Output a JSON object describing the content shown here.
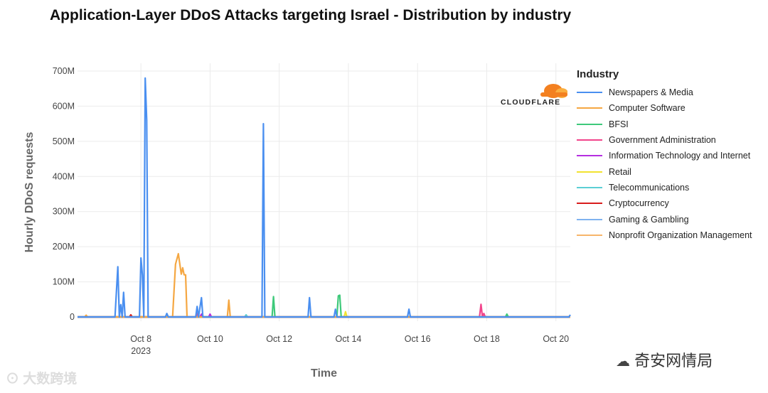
{
  "watermarks": {
    "left": "⊙ 大数跨境",
    "right_icon": "wechat-icon",
    "right": "奇安网情局"
  },
  "chart_data": {
    "type": "line",
    "title": "Application-Layer DDoS Attacks targeting Israel - Distribution by industry",
    "xlabel": "Time",
    "ylabel": "Hourly DDoS requests",
    "ylim": [
      0,
      720
    ],
    "y_unit": "M",
    "yticks": [
      {
        "value": 0,
        "label": "0"
      },
      {
        "value": 100,
        "label": "100M"
      },
      {
        "value": 200,
        "label": "200M"
      },
      {
        "value": 300,
        "label": "300M"
      },
      {
        "value": 400,
        "label": "400M"
      },
      {
        "value": 500,
        "label": "500M"
      },
      {
        "value": 600,
        "label": "600M"
      },
      {
        "value": 700,
        "label": "700M"
      }
    ],
    "xlim": [
      "Oct 6 2023 04:00",
      "Oct 20 2023 10:00"
    ],
    "xticks": [
      {
        "value": "Oct 8 2023",
        "label": "Oct 8",
        "sublabel": "2023"
      },
      {
        "value": "Oct 10 2023",
        "label": "Oct 10"
      },
      {
        "value": "Oct 12 2023",
        "label": "Oct 12"
      },
      {
        "value": "Oct 14 2023",
        "label": "Oct 14"
      },
      {
        "value": "Oct 16 2023",
        "label": "Oct 16"
      },
      {
        "value": "Oct 18 2023",
        "label": "Oct 18"
      },
      {
        "value": "Oct 20 2023",
        "label": "Oct 20"
      }
    ],
    "grid": true,
    "legend_title": "Industry",
    "legend_position": "right",
    "logo_text": "CLOUDFLARE",
    "series": [
      {
        "name": "Newspapers & Media",
        "color": "#4a8ff0",
        "points": [
          [
            "Oct 6 2023 04:00",
            0
          ],
          [
            "Oct 7 2023 06:00",
            0
          ],
          [
            "Oct 7 2023 08:00",
            143
          ],
          [
            "Oct 7 2023 09:00",
            0
          ],
          [
            "Oct 7 2023 10:00",
            35
          ],
          [
            "Oct 7 2023 11:00",
            0
          ],
          [
            "Oct 7 2023 12:00",
            70
          ],
          [
            "Oct 7 2023 13:00",
            0
          ],
          [
            "Oct 7 2023 23:00",
            0
          ],
          [
            "Oct 8 2023 00:00",
            168
          ],
          [
            "Oct 8 2023 01:00",
            120
          ],
          [
            "Oct 8 2023 02:00",
            0
          ],
          [
            "Oct 8 2023 03:00",
            680
          ],
          [
            "Oct 8 2023 04:00",
            560
          ],
          [
            "Oct 8 2023 05:00",
            0
          ],
          [
            "Oct 8 2023 17:00",
            0
          ],
          [
            "Oct 8 2023 18:00",
            10
          ],
          [
            "Oct 8 2023 19:00",
            0
          ],
          [
            "Oct 9 2023 14:00",
            0
          ],
          [
            "Oct 9 2023 15:00",
            30
          ],
          [
            "Oct 9 2023 16:00",
            0
          ],
          [
            "Oct 9 2023 18:00",
            55
          ],
          [
            "Oct 9 2023 19:00",
            0
          ],
          [
            "Oct 11 2023 12:00",
            0
          ],
          [
            "Oct 11 2023 13:00",
            550
          ],
          [
            "Oct 11 2023 14:00",
            0
          ],
          [
            "Oct 12 2023 20:00",
            0
          ],
          [
            "Oct 12 2023 21:00",
            55
          ],
          [
            "Oct 12 2023 22:00",
            0
          ],
          [
            "Oct 13 2023 14:00",
            0
          ],
          [
            "Oct 13 2023 15:00",
            22
          ],
          [
            "Oct 13 2023 16:00",
            0
          ],
          [
            "Oct 15 2023 17:00",
            0
          ],
          [
            "Oct 15 2023 18:00",
            22
          ],
          [
            "Oct 15 2023 19:00",
            0
          ],
          [
            "Oct 20 2023 09:00",
            0
          ],
          [
            "Oct 20 2023 10:00",
            6
          ]
        ]
      },
      {
        "name": "Computer Software",
        "color": "#f5a742",
        "points": [
          [
            "Oct 6 2023 04:00",
            0
          ],
          [
            "Oct 6 2023 09:00",
            0
          ],
          [
            "Oct 6 2023 10:00",
            5
          ],
          [
            "Oct 6 2023 11:00",
            0
          ],
          [
            "Oct 8 2023 22:00",
            0
          ],
          [
            "Oct 9 2023 00:00",
            150
          ],
          [
            "Oct 9 2023 01:00",
            165
          ],
          [
            "Oct 9 2023 02:00",
            180
          ],
          [
            "Oct 9 2023 03:00",
            150
          ],
          [
            "Oct 9 2023 04:00",
            122
          ],
          [
            "Oct 9 2023 05:00",
            140
          ],
          [
            "Oct 9 2023 06:00",
            120
          ],
          [
            "Oct 9 2023 07:00",
            120
          ],
          [
            "Oct 9 2023 08:00",
            0
          ],
          [
            "Oct 10 2023 12:00",
            0
          ],
          [
            "Oct 10 2023 13:00",
            48
          ],
          [
            "Oct 10 2023 14:00",
            0
          ],
          [
            "Oct 20 2023 10:00",
            0
          ]
        ]
      },
      {
        "name": "BFSI",
        "color": "#3ec97a",
        "points": [
          [
            "Oct 6 2023 04:00",
            0
          ],
          [
            "Oct 11 2023 19:00",
            0
          ],
          [
            "Oct 11 2023 20:00",
            58
          ],
          [
            "Oct 11 2023 21:00",
            0
          ],
          [
            "Oct 13 2023 16:00",
            0
          ],
          [
            "Oct 13 2023 17:00",
            60
          ],
          [
            "Oct 13 2023 18:00",
            62
          ],
          [
            "Oct 13 2023 19:00",
            0
          ],
          [
            "Oct 18 2023 13:00",
            0
          ],
          [
            "Oct 18 2023 14:00",
            8
          ],
          [
            "Oct 18 2023 15:00",
            0
          ],
          [
            "Oct 20 2023 10:00",
            0
          ]
        ]
      },
      {
        "name": "Government Administration",
        "color": "#f2448b",
        "points": [
          [
            "Oct 6 2023 04:00",
            0
          ],
          [
            "Oct 9 2023 14:00",
            0
          ],
          [
            "Oct 9 2023 15:00",
            10
          ],
          [
            "Oct 9 2023 16:00",
            0
          ],
          [
            "Oct 17 2023 19:00",
            0
          ],
          [
            "Oct 17 2023 20:00",
            36
          ],
          [
            "Oct 17 2023 21:00",
            0
          ],
          [
            "Oct 17 2023 22:00",
            10
          ],
          [
            "Oct 17 2023 23:00",
            0
          ],
          [
            "Oct 20 2023 10:00",
            0
          ]
        ]
      },
      {
        "name": "Information Technology and Internet",
        "color": "#b52fe0",
        "points": [
          [
            "Oct 6 2023 04:00",
            0
          ],
          [
            "Oct 9 2023 17:00",
            0
          ],
          [
            "Oct 9 2023 18:00",
            8
          ],
          [
            "Oct 9 2023 19:00",
            0
          ],
          [
            "Oct 9 2023 23:00",
            0
          ],
          [
            "Oct 10 2023 00:00",
            8
          ],
          [
            "Oct 10 2023 01:00",
            0
          ],
          [
            "Oct 20 2023 10:00",
            0
          ]
        ]
      },
      {
        "name": "Retail",
        "color": "#f2e330",
        "points": [
          [
            "Oct 6 2023 04:00",
            0
          ],
          [
            "Oct 13 2023 21:00",
            0
          ],
          [
            "Oct 13 2023 22:00",
            15
          ],
          [
            "Oct 13 2023 23:00",
            0
          ],
          [
            "Oct 20 2023 10:00",
            0
          ]
        ]
      },
      {
        "name": "Telecommunications",
        "color": "#5ccfd4",
        "points": [
          [
            "Oct 6 2023 04:00",
            0
          ],
          [
            "Oct 11 2023 00:00",
            0
          ],
          [
            "Oct 11 2023 01:00",
            6
          ],
          [
            "Oct 11 2023 02:00",
            0
          ],
          [
            "Oct 20 2023 10:00",
            0
          ]
        ]
      },
      {
        "name": "Cryptocurrency",
        "color": "#d91c1c",
        "points": [
          [
            "Oct 6 2023 04:00",
            0
          ],
          [
            "Oct 7 2023 16:00",
            0
          ],
          [
            "Oct 7 2023 17:00",
            6
          ],
          [
            "Oct 7 2023 18:00",
            0
          ],
          [
            "Oct 20 2023 10:00",
            0
          ]
        ]
      },
      {
        "name": "Gaming & Gambling",
        "color": "#7fb2f0",
        "points": [
          [
            "Oct 6 2023 04:00",
            0
          ],
          [
            "Oct 20 2023 10:00",
            0
          ]
        ]
      },
      {
        "name": "Nonprofit Organization Management",
        "color": "#f7b56a",
        "points": [
          [
            "Oct 6 2023 04:00",
            0
          ],
          [
            "Oct 20 2023 10:00",
            0
          ]
        ]
      }
    ]
  }
}
